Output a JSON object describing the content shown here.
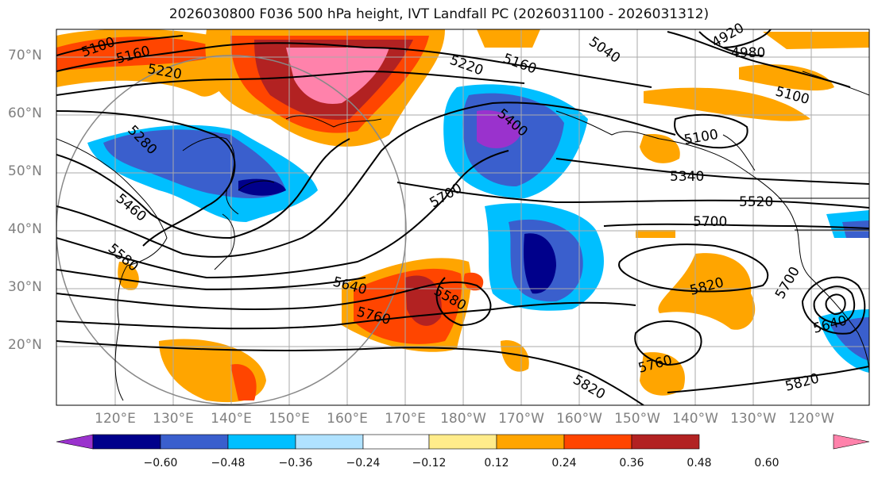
{
  "title": "2026030800 F036 500 hPa height, IVT Landfall PC (2026031100 - 2026031312)",
  "lat_labels": [
    "70°N",
    "60°N",
    "50°N",
    "40°N",
    "30°N",
    "20°N"
  ],
  "lon_labels": [
    "120°E",
    "130°E",
    "140°E",
    "150°E",
    "160°E",
    "170°E",
    "180°W",
    "170°W",
    "160°W",
    "150°W",
    "140°W",
    "130°W",
    "120°W"
  ],
  "contour_labels": [
    "5100",
    "5160",
    "5220",
    "5040",
    "4920",
    "4980",
    "5220",
    "5160",
    "5280",
    "5400",
    "5100",
    "5100",
    "5340",
    "5520",
    "5460",
    "5580",
    "5700",
    "5700",
    "5640",
    "5760",
    "5580",
    "5820",
    "5700",
    "5640",
    "5760",
    "5820",
    "5820"
  ],
  "colorbar": {
    "ticks": [
      "−0.60",
      "−0.48",
      "−0.36",
      "−0.24",
      "−0.12",
      "0.12",
      "0.24",
      "0.36",
      "0.48",
      "0.60"
    ],
    "colors": [
      "#9a32cd",
      "#00008b",
      "#3a5fcd",
      "#00bfff",
      "#b0e2ff",
      "#ffffff",
      "#ffec8b",
      "#ffa500",
      "#ff4500",
      "#b22222",
      "#ff82ab"
    ]
  }
}
